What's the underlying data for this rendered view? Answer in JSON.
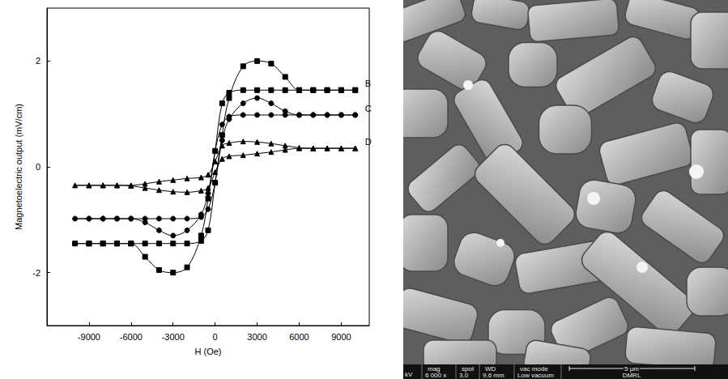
{
  "chart_data": {
    "type": "line",
    "x_label": "H (Oe)",
    "y_label": "Magnetoelectric output (mV/cm)",
    "xlim": [
      -12000,
      11000
    ],
    "xticks": [
      -9000,
      -6000,
      -3000,
      0,
      3000,
      6000,
      9000
    ],
    "ylim": [
      -3,
      3
    ],
    "yticks": [
      -2,
      0,
      2
    ],
    "grid": false,
    "series": [
      {
        "name": "B",
        "color": "#000000",
        "marker": "square",
        "x": [
          10000,
          9000,
          8000,
          7000,
          6000,
          5000,
          4000,
          3000,
          2000,
          1000,
          500,
          0,
          -500,
          -1000,
          -2000,
          -3000,
          -4000,
          -5000,
          -6000,
          -7000,
          -8000,
          -9000,
          -10000,
          -9000,
          -8000,
          -7000,
          -6000,
          -5000,
          -4000,
          -3000,
          -2000,
          -1000,
          -500,
          0,
          500,
          1000,
          2000,
          3000,
          4000,
          5000,
          6000,
          7000,
          8000,
          9000,
          10000
        ],
        "values": [
          1.45,
          1.45,
          1.45,
          1.45,
          1.45,
          1.45,
          1.45,
          1.45,
          1.45,
          1.4,
          1.2,
          0.3,
          -0.6,
          -1.3,
          -1.9,
          -2.0,
          -1.95,
          -1.7,
          -1.45,
          -1.45,
          -1.45,
          -1.45,
          -1.45,
          -1.45,
          -1.45,
          -1.45,
          -1.45,
          -1.45,
          -1.45,
          -1.45,
          -1.45,
          -1.4,
          -1.2,
          -0.3,
          0.6,
          1.3,
          1.9,
          2.0,
          1.95,
          1.7,
          1.45,
          1.45,
          1.45,
          1.45,
          1.45
        ]
      },
      {
        "name": "C",
        "color": "#000000",
        "marker": "circle",
        "x": [
          10000,
          9000,
          8000,
          7000,
          6000,
          5000,
          4000,
          3000,
          2000,
          1000,
          500,
          0,
          -500,
          -1000,
          -2000,
          -3000,
          -4000,
          -5000,
          -6000,
          -7000,
          -8000,
          -9000,
          -10000,
          -9000,
          -8000,
          -7000,
          -6000,
          -5000,
          -4000,
          -3000,
          -2000,
          -1000,
          -500,
          0,
          500,
          1000,
          2000,
          3000,
          4000,
          5000,
          6000,
          7000,
          8000,
          9000,
          10000
        ],
        "values": [
          0.98,
          0.98,
          0.98,
          0.98,
          0.98,
          0.98,
          0.98,
          0.98,
          0.98,
          0.95,
          0.8,
          0.3,
          -0.5,
          -0.9,
          -1.2,
          -1.3,
          -1.2,
          -1.05,
          -0.98,
          -0.98,
          -0.98,
          -0.98,
          -0.98,
          -0.98,
          -0.98,
          -0.98,
          -0.98,
          -0.98,
          -0.98,
          -0.98,
          -0.98,
          -0.95,
          -0.8,
          -0.3,
          0.5,
          0.9,
          1.2,
          1.3,
          1.2,
          1.05,
          0.98,
          0.98,
          0.98,
          0.98,
          0.98
        ]
      },
      {
        "name": "D",
        "color": "#000000",
        "marker": "triangle",
        "x": [
          10000,
          9000,
          8000,
          7000,
          6000,
          5000,
          4000,
          3000,
          2000,
          1000,
          500,
          0,
          -500,
          -1000,
          -2000,
          -3000,
          -4000,
          -5000,
          -6000,
          -7000,
          -8000,
          -9000,
          -10000,
          -9000,
          -8000,
          -7000,
          -6000,
          -5000,
          -4000,
          -3000,
          -2000,
          -1000,
          -500,
          0,
          500,
          1000,
          2000,
          3000,
          4000,
          5000,
          6000,
          7000,
          8000,
          9000,
          10000
        ],
        "values": [
          0.35,
          0.35,
          0.35,
          0.35,
          0.36,
          0.4,
          0.44,
          0.47,
          0.48,
          0.45,
          0.4,
          0.1,
          -0.15,
          -0.2,
          -0.22,
          -0.25,
          -0.28,
          -0.32,
          -0.35,
          -0.35,
          -0.35,
          -0.35,
          -0.35,
          -0.35,
          -0.35,
          -0.35,
          -0.36,
          -0.4,
          -0.44,
          -0.47,
          -0.48,
          -0.45,
          -0.4,
          -0.1,
          0.15,
          0.2,
          0.22,
          0.25,
          0.28,
          0.32,
          0.35,
          0.35,
          0.35,
          0.35,
          0.35
        ]
      }
    ]
  },
  "micrograph": {
    "kv": "kV",
    "cells": [
      {
        "top": "mag",
        "bottom": "6 000 x"
      },
      {
        "top": "spot",
        "bottom": "3.0"
      },
      {
        "top": "WD",
        "bottom": "9.6 mm"
      },
      {
        "top": "vac mode",
        "bottom": "Low vacuum"
      }
    ],
    "scale_bar": "5 μm",
    "lab": "DMRL"
  }
}
